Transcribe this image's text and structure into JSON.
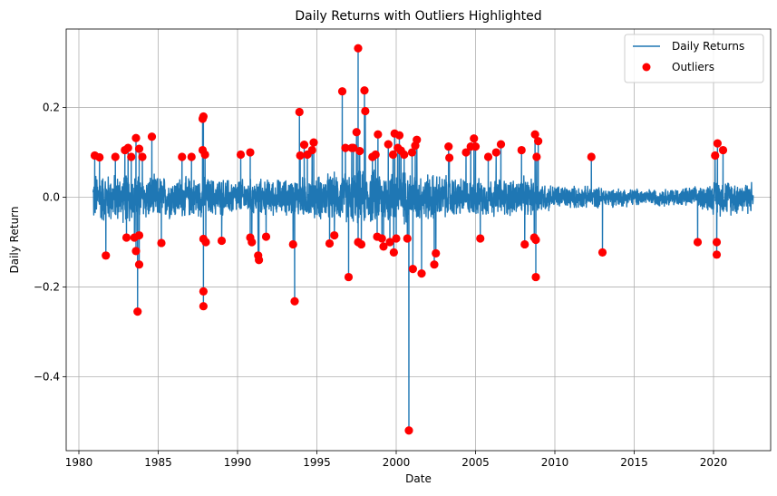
{
  "chart_data": {
    "type": "line",
    "title": "Daily Returns with Outliers Highlighted",
    "xlabel": "Date",
    "ylabel": "Daily Return",
    "xlim": [
      1979.2,
      2023.6
    ],
    "ylim": [
      -0.565,
      0.375
    ],
    "x_ticks": [
      1980,
      1985,
      1990,
      1995,
      2000,
      2005,
      2010,
      2015,
      2020
    ],
    "x_tick_labels": [
      "1980",
      "1985",
      "1990",
      "1995",
      "2000",
      "2005",
      "2010",
      "2015",
      "2020"
    ],
    "y_ticks": [
      -0.4,
      -0.2,
      0.0,
      0.2
    ],
    "y_tick_labels": [
      "−0.4",
      "−0.2",
      "0.0",
      "0.2"
    ],
    "grid": true,
    "legend_position": "top-right",
    "colors": {
      "line": "#1f77b4",
      "outliers": "#ff0000"
    },
    "series": [
      {
        "name": "Daily Returns",
        "type": "line",
        "x_range": [
          1980.9,
          2022.5
        ],
        "band": [
          {
            "x": 1981,
            "lo": -0.065,
            "hi": 0.06
          },
          {
            "x": 1984,
            "lo": -0.06,
            "hi": 0.055
          },
          {
            "x": 1987,
            "lo": -0.05,
            "hi": 0.05
          },
          {
            "x": 1990,
            "lo": -0.045,
            "hi": 0.045
          },
          {
            "x": 1993,
            "lo": -0.045,
            "hi": 0.045
          },
          {
            "x": 1996,
            "lo": -0.06,
            "hi": 0.06
          },
          {
            "x": 1999,
            "lo": -0.07,
            "hi": 0.07
          },
          {
            "x": 2001,
            "lo": -0.065,
            "hi": 0.065
          },
          {
            "x": 2003,
            "lo": -0.055,
            "hi": 0.055
          },
          {
            "x": 2005,
            "lo": -0.045,
            "hi": 0.045
          },
          {
            "x": 2008,
            "lo": -0.05,
            "hi": 0.05
          },
          {
            "x": 2010,
            "lo": -0.03,
            "hi": 0.03
          },
          {
            "x": 2013,
            "lo": -0.025,
            "hi": 0.025
          },
          {
            "x": 2016,
            "lo": -0.02,
            "hi": 0.02
          },
          {
            "x": 2019,
            "lo": -0.025,
            "hi": 0.025
          },
          {
            "x": 2020.3,
            "lo": -0.045,
            "hi": 0.045
          },
          {
            "x": 2022.5,
            "lo": -0.04,
            "hi": 0.04
          }
        ]
      },
      {
        "name": "Outliers",
        "type": "scatter",
        "points": [
          [
            1981.0,
            0.093
          ],
          [
            1981.3,
            0.089
          ],
          [
            1981.7,
            -0.13
          ],
          [
            1982.3,
            0.09
          ],
          [
            1982.9,
            0.105
          ],
          [
            1983.0,
            -0.09
          ],
          [
            1983.1,
            0.11
          ],
          [
            1983.3,
            0.09
          ],
          [
            1983.5,
            -0.09
          ],
          [
            1983.6,
            0.132
          ],
          [
            1983.6,
            -0.12
          ],
          [
            1983.7,
            -0.255
          ],
          [
            1983.8,
            0.108
          ],
          [
            1983.8,
            -0.085
          ],
          [
            1983.8,
            -0.15
          ],
          [
            1984.0,
            0.09
          ],
          [
            1984.6,
            0.135
          ],
          [
            1985.2,
            -0.102
          ],
          [
            1986.5,
            0.09
          ],
          [
            1987.1,
            0.09
          ],
          [
            1987.8,
            0.175
          ],
          [
            1987.85,
            0.18
          ],
          [
            1987.8,
            0.105
          ],
          [
            1987.85,
            -0.093
          ],
          [
            1987.85,
            -0.21
          ],
          [
            1987.85,
            -0.243
          ],
          [
            1987.95,
            0.095
          ],
          [
            1988.0,
            -0.1
          ],
          [
            1989.0,
            -0.097
          ],
          [
            1990.2,
            0.095
          ],
          [
            1990.8,
            0.1
          ],
          [
            1990.8,
            -0.09
          ],
          [
            1990.9,
            -0.1
          ],
          [
            1991.3,
            -0.13
          ],
          [
            1991.35,
            -0.14
          ],
          [
            1991.8,
            -0.088
          ],
          [
            1993.5,
            -0.105
          ],
          [
            1993.6,
            -0.232
          ],
          [
            1993.9,
            0.19
          ],
          [
            1993.95,
            0.093
          ],
          [
            1994.2,
            0.117
          ],
          [
            1994.4,
            0.095
          ],
          [
            1994.7,
            0.105
          ],
          [
            1994.8,
            0.122
          ],
          [
            1995.8,
            -0.103
          ],
          [
            1996.1,
            -0.085
          ],
          [
            1996.6,
            0.236
          ],
          [
            1996.8,
            0.11
          ],
          [
            1997.0,
            -0.178
          ],
          [
            1997.2,
            0.11
          ],
          [
            1997.3,
            0.11
          ],
          [
            1997.5,
            0.145
          ],
          [
            1997.6,
            0.332
          ],
          [
            1997.6,
            -0.1
          ],
          [
            1997.7,
            0.103
          ],
          [
            1997.8,
            -0.105
          ],
          [
            1998.0,
            0.238
          ],
          [
            1998.05,
            0.192
          ],
          [
            1998.5,
            0.09
          ],
          [
            1998.7,
            0.095
          ],
          [
            1998.8,
            -0.088
          ],
          [
            1998.85,
            0.14
          ],
          [
            1999.1,
            -0.092
          ],
          [
            1999.2,
            -0.11
          ],
          [
            1999.5,
            0.118
          ],
          [
            1999.6,
            -0.1
          ],
          [
            1999.8,
            0.095
          ],
          [
            1999.85,
            -0.123
          ],
          [
            1999.9,
            0.142
          ],
          [
            2000.0,
            -0.092
          ],
          [
            2000.1,
            0.11
          ],
          [
            2000.2,
            0.138
          ],
          [
            2000.3,
            0.104
          ],
          [
            2000.5,
            0.095
          ],
          [
            2000.7,
            -0.092
          ],
          [
            2000.8,
            -0.52
          ],
          [
            2001.0,
            0.1
          ],
          [
            2001.05,
            -0.16
          ],
          [
            2001.2,
            0.115
          ],
          [
            2001.3,
            0.128
          ],
          [
            2001.6,
            -0.17
          ],
          [
            2002.4,
            -0.15
          ],
          [
            2002.5,
            -0.125
          ],
          [
            2003.3,
            0.113
          ],
          [
            2003.35,
            0.088
          ],
          [
            2004.4,
            0.1
          ],
          [
            2004.7,
            0.113
          ],
          [
            2004.9,
            0.131
          ],
          [
            2005.0,
            0.113
          ],
          [
            2005.3,
            -0.092
          ],
          [
            2005.8,
            0.09
          ],
          [
            2006.3,
            0.1
          ],
          [
            2006.6,
            0.118
          ],
          [
            2007.9,
            0.105
          ],
          [
            2008.1,
            -0.105
          ],
          [
            2008.7,
            -0.09
          ],
          [
            2008.75,
            0.14
          ],
          [
            2008.8,
            -0.178
          ],
          [
            2008.8,
            -0.095
          ],
          [
            2008.85,
            0.09
          ],
          [
            2008.95,
            0.125
          ],
          [
            2012.3,
            0.09
          ],
          [
            2013.0,
            -0.123
          ],
          [
            2019.0,
            -0.1
          ],
          [
            2020.1,
            0.093
          ],
          [
            2020.2,
            -0.1
          ],
          [
            2020.2,
            -0.128
          ],
          [
            2020.25,
            0.12
          ],
          [
            2020.6,
            0.105
          ]
        ]
      }
    ]
  }
}
